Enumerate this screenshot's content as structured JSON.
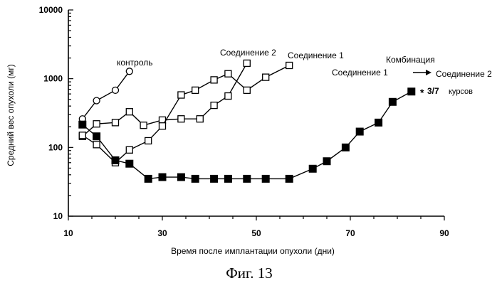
{
  "figure_caption": "Фиг. 13",
  "chart_data": {
    "type": "line",
    "title": "",
    "xlabel": "Время после имплантации опухоли (дни)",
    "ylabel": "Средний вес опухоли (мг)",
    "xlim": [
      10,
      90
    ],
    "ylim": [
      10,
      10000
    ],
    "y_scale": "log",
    "x_ticks": [
      10,
      30,
      50,
      70,
      90
    ],
    "y_ticks": [
      10,
      100,
      1000,
      10000
    ],
    "grid": false,
    "series": [
      {
        "name": "контроль",
        "marker": "circle-open",
        "x": [
          13,
          16,
          20,
          23
        ],
        "y": [
          260,
          480,
          680,
          1280
        ]
      },
      {
        "name": "Соединение 2",
        "marker": "square-open",
        "x": [
          13,
          16,
          20,
          23,
          26,
          30,
          34,
          38,
          41,
          44,
          48
        ],
        "y": [
          145,
          220,
          230,
          330,
          210,
          250,
          260,
          260,
          410,
          560,
          1680
        ]
      },
      {
        "name": "Соединение 1",
        "marker": "square-open",
        "x": [
          13,
          16,
          20,
          23,
          27,
          30,
          34,
          37,
          41,
          44,
          48,
          52,
          57
        ],
        "y": [
          150,
          110,
          60,
          92,
          125,
          205,
          580,
          680,
          960,
          1180,
          680,
          1050,
          1560
        ]
      },
      {
        "name": "Комбинация",
        "marker": "square-filled",
        "x": [
          13,
          16,
          20,
          23,
          27,
          30,
          34,
          37,
          41,
          44,
          48,
          52,
          57,
          62,
          65,
          69,
          72,
          76,
          79,
          83
        ],
        "y": [
          215,
          145,
          65,
          58,
          35,
          37,
          37,
          35,
          35,
          35,
          35,
          35,
          35,
          49,
          63,
          100,
          170,
          230,
          460,
          650
        ]
      }
    ],
    "annotations": {
      "control": "контроль",
      "compound2": "Соединение 2",
      "compound1": "Соединение 1",
      "combination": "Комбинация",
      "combo_from": "Соединение 1",
      "combo_to": "Соединение 2",
      "courses_star": "*",
      "courses_count": "3/7",
      "courses_word": "курсов"
    }
  }
}
